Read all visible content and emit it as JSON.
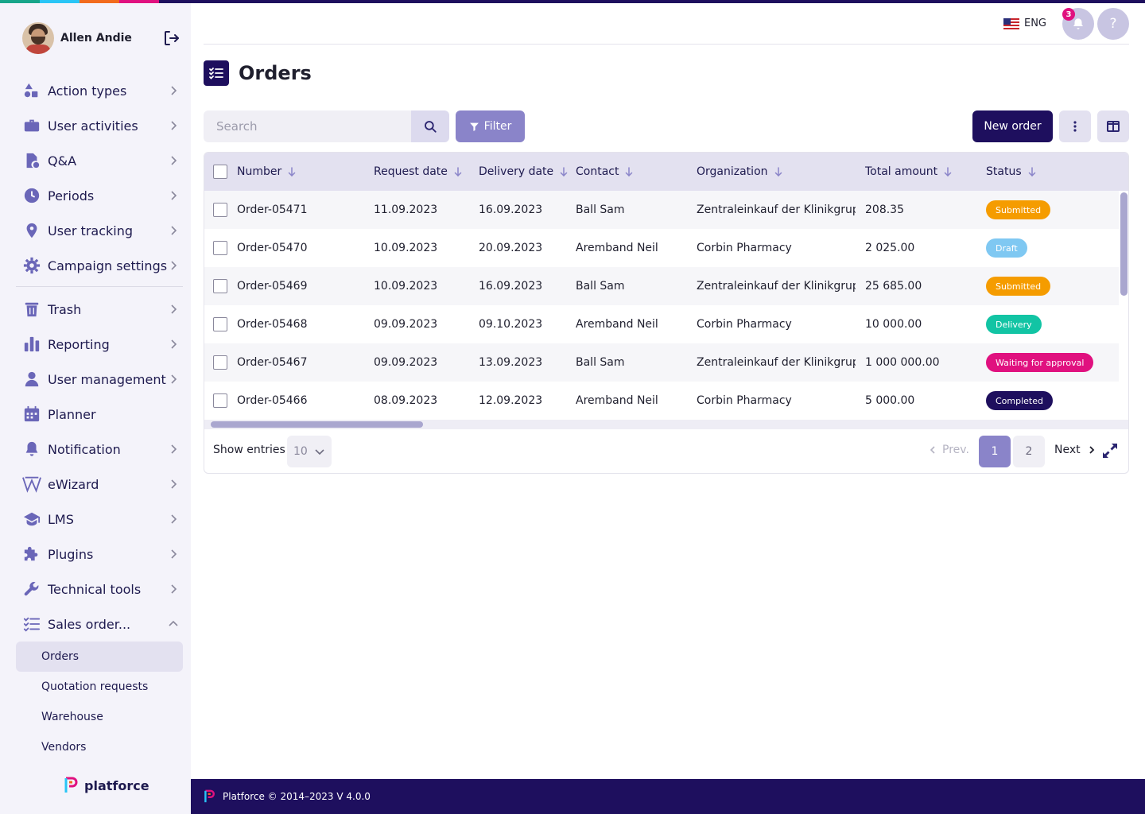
{
  "colors": {
    "brand_dark": "#1e0f5e",
    "accent": "#8a84c9",
    "stripe": [
      "#17a589",
      "#29c5f6",
      "#f26b1d",
      "#e0117f",
      "#1e0f5e"
    ]
  },
  "user": {
    "name": "Allen Andie"
  },
  "sidebar": {
    "items": [
      {
        "label": "Action types",
        "icon": "shapes-icon"
      },
      {
        "label": "User activities",
        "icon": "briefcase-icon"
      },
      {
        "label": "Q&A",
        "icon": "document-question-icon"
      },
      {
        "label": "Periods",
        "icon": "clock-icon"
      },
      {
        "label": "User tracking",
        "icon": "location-pin-icon"
      },
      {
        "label": "Campaign settings",
        "icon": "gear-icon"
      },
      {
        "label": "Trash",
        "icon": "trash-icon"
      },
      {
        "label": "Reporting",
        "icon": "bar-chart-icon"
      },
      {
        "label": "User management",
        "icon": "user-icon"
      },
      {
        "label": "Planner",
        "icon": "calendar-icon"
      },
      {
        "label": "Notification",
        "icon": "bell-icon"
      },
      {
        "label": "eWizard",
        "icon": "ewizard-icon"
      },
      {
        "label": "LMS",
        "icon": "graduation-cap-icon"
      },
      {
        "label": "Plugins",
        "icon": "puzzle-icon"
      },
      {
        "label": "Technical tools",
        "icon": "wrench-icon"
      },
      {
        "label": "Sales order...",
        "icon": "checklist-icon"
      }
    ],
    "sub_items": [
      {
        "label": "Orders",
        "active": true
      },
      {
        "label": "Quotation requests",
        "active": false
      },
      {
        "label": "Warehouse",
        "active": false
      },
      {
        "label": "Vendors",
        "active": false
      }
    ],
    "brand": "platforce"
  },
  "header": {
    "language": "ENG",
    "notifications_count": "3",
    "help": "?"
  },
  "page": {
    "title": "Orders"
  },
  "toolbar": {
    "search_placeholder": "Search",
    "filter_label": "Filter",
    "new_order_label": "New order"
  },
  "table": {
    "columns": [
      "Number",
      "Request date",
      "Delivery date",
      "Contact",
      "Organization",
      "Total amount",
      "Status"
    ],
    "rows": [
      {
        "number": "Order-05471",
        "request": "11.09.2023",
        "delivery": "16.09.2023",
        "contact": "Ball Sam",
        "org": "Zentraleinkauf der Klinikgrup...",
        "amount": "208.35",
        "status": "Submitted",
        "status_color": "#f59c00"
      },
      {
        "number": "Order-05470",
        "request": "10.09.2023",
        "delivery": "20.09.2023",
        "contact": "Aremband Neil",
        "org": "Corbin Pharmacy",
        "amount": "2 025.00",
        "status": "Draft",
        "status_color": "#7fc8f2"
      },
      {
        "number": "Order-05469",
        "request": "10.09.2023",
        "delivery": "16.09.2023",
        "contact": "Ball Sam",
        "org": "Zentraleinkauf der Klinikgrup...",
        "amount": "25 685.00",
        "status": "Submitted",
        "status_color": "#f59c00"
      },
      {
        "number": "Order-05468",
        "request": "09.09.2023",
        "delivery": "09.10.2023",
        "contact": "Aremband Neil",
        "org": "Corbin Pharmacy",
        "amount": "10 000.00",
        "status": "Delivery",
        "status_color": "#12c4a4"
      },
      {
        "number": "Order-05467",
        "request": "09.09.2023",
        "delivery": "13.09.2023",
        "contact": "Ball Sam",
        "org": "Zentraleinkauf der Klinikgrup...",
        "amount": "1 000 000.00",
        "status": "Waiting for approval",
        "status_color": "#e0117f"
      },
      {
        "number": "Order-05466",
        "request": "08.09.2023",
        "delivery": "12.09.2023",
        "contact": "Aremband Neil",
        "org": "Corbin Pharmacy",
        "amount": "5 000.00",
        "status": "Completed",
        "status_color": "#1e0f5e"
      }
    ]
  },
  "pagination": {
    "show_entries_label": "Show entries",
    "entries_value": "10",
    "prev_label": "Prev.",
    "pages": [
      "1",
      "2"
    ],
    "current_page": "1",
    "next_label": "Next"
  },
  "footer": {
    "text": "Platforce © 2014–2023 V 4.0.0"
  }
}
